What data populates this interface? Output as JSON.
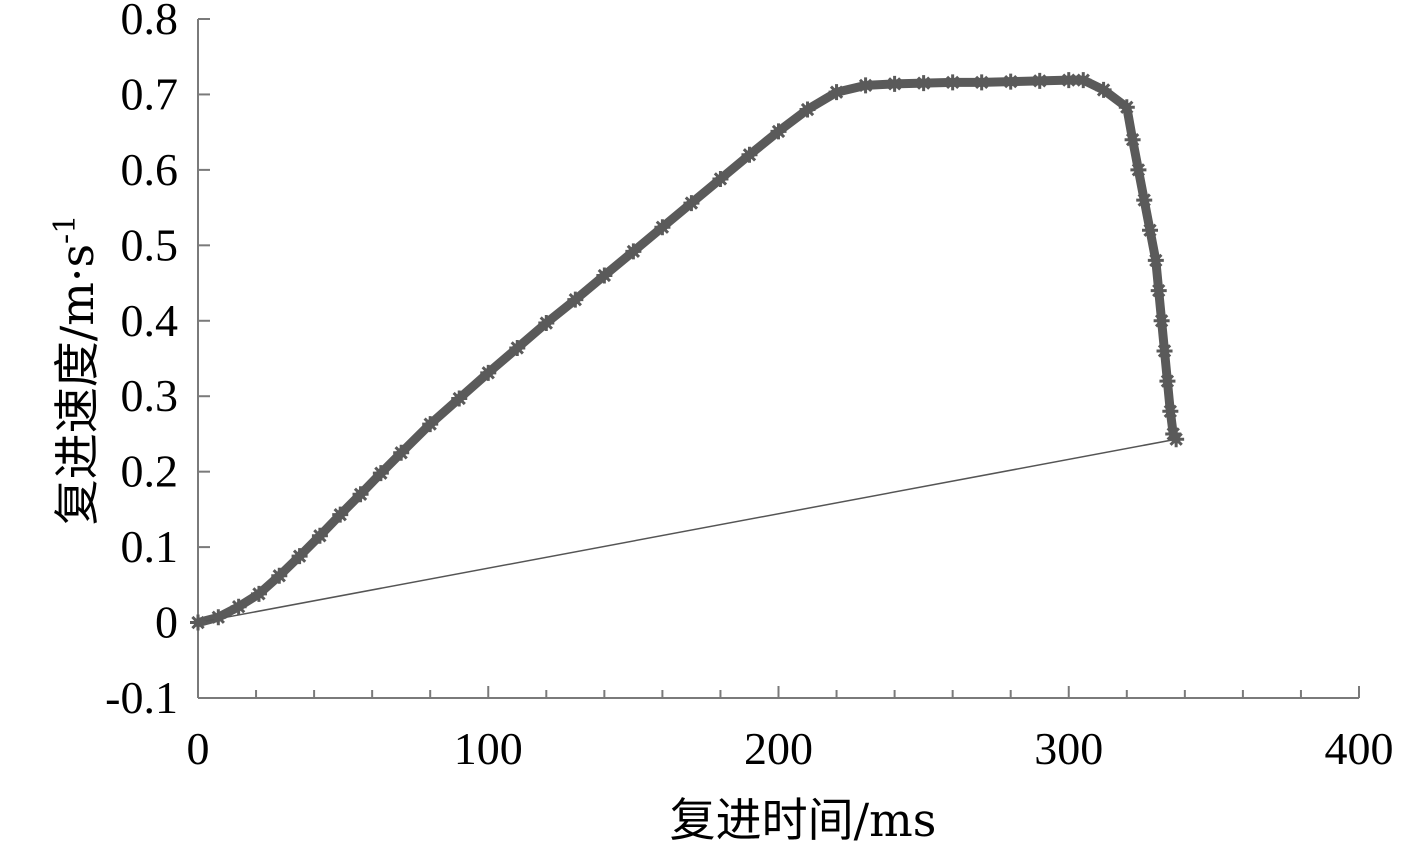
{
  "chart_data": {
    "type": "line",
    "xlabel": "复进时间/ms",
    "ylabel": "复进速度/m·s",
    "ylabel_superscript": "-1",
    "xlim": [
      0,
      400
    ],
    "ylim": [
      -0.1,
      0.8
    ],
    "x_ticks": [
      0,
      100,
      200,
      300,
      400
    ],
    "x_tick_labels": [
      "0",
      "100",
      "200",
      "300",
      "400"
    ],
    "y_ticks": [
      -0.1,
      0,
      0.1,
      0.2,
      0.3,
      0.4,
      0.5,
      0.6,
      0.7,
      0.8
    ],
    "y_tick_labels": [
      "-0.1",
      "0",
      "0.1",
      "0.2",
      "0.3",
      "0.4",
      "0.5",
      "0.6",
      "0.7",
      "0.8"
    ],
    "grid": false,
    "line_color": "#5a5a5a",
    "closing_line_color": "#555555",
    "series": [
      {
        "marker": "star",
        "points": [
          [
            0,
            0
          ],
          [
            7,
            0.007
          ],
          [
            14,
            0.021
          ],
          [
            21,
            0.038
          ],
          [
            28,
            0.062
          ],
          [
            35,
            0.088
          ],
          [
            42,
            0.115
          ],
          [
            49,
            0.143
          ],
          [
            56,
            0.17
          ],
          [
            63,
            0.198
          ],
          [
            70,
            0.225
          ],
          [
            80,
            0.263
          ],
          [
            90,
            0.297
          ],
          [
            100,
            0.331
          ],
          [
            110,
            0.364
          ],
          [
            120,
            0.397
          ],
          [
            130,
            0.428
          ],
          [
            140,
            0.46
          ],
          [
            150,
            0.492
          ],
          [
            160,
            0.524
          ],
          [
            170,
            0.556
          ],
          [
            180,
            0.588
          ],
          [
            190,
            0.62
          ],
          [
            200,
            0.651
          ],
          [
            210,
            0.68
          ],
          [
            220,
            0.703
          ],
          [
            230,
            0.712
          ],
          [
            240,
            0.714
          ],
          [
            250,
            0.715
          ],
          [
            260,
            0.716
          ],
          [
            270,
            0.716
          ],
          [
            280,
            0.717
          ],
          [
            290,
            0.718
          ],
          [
            300,
            0.719
          ],
          [
            305,
            0.719
          ],
          [
            312,
            0.706
          ],
          [
            320,
            0.683
          ],
          [
            322,
            0.64
          ],
          [
            324,
            0.6
          ],
          [
            326,
            0.56
          ],
          [
            328,
            0.52
          ],
          [
            330,
            0.48
          ],
          [
            331,
            0.44
          ],
          [
            332,
            0.4
          ],
          [
            333,
            0.36
          ],
          [
            334,
            0.32
          ],
          [
            335,
            0.28
          ],
          [
            336,
            0.25
          ],
          [
            337,
            0.243
          ]
        ]
      }
    ]
  }
}
